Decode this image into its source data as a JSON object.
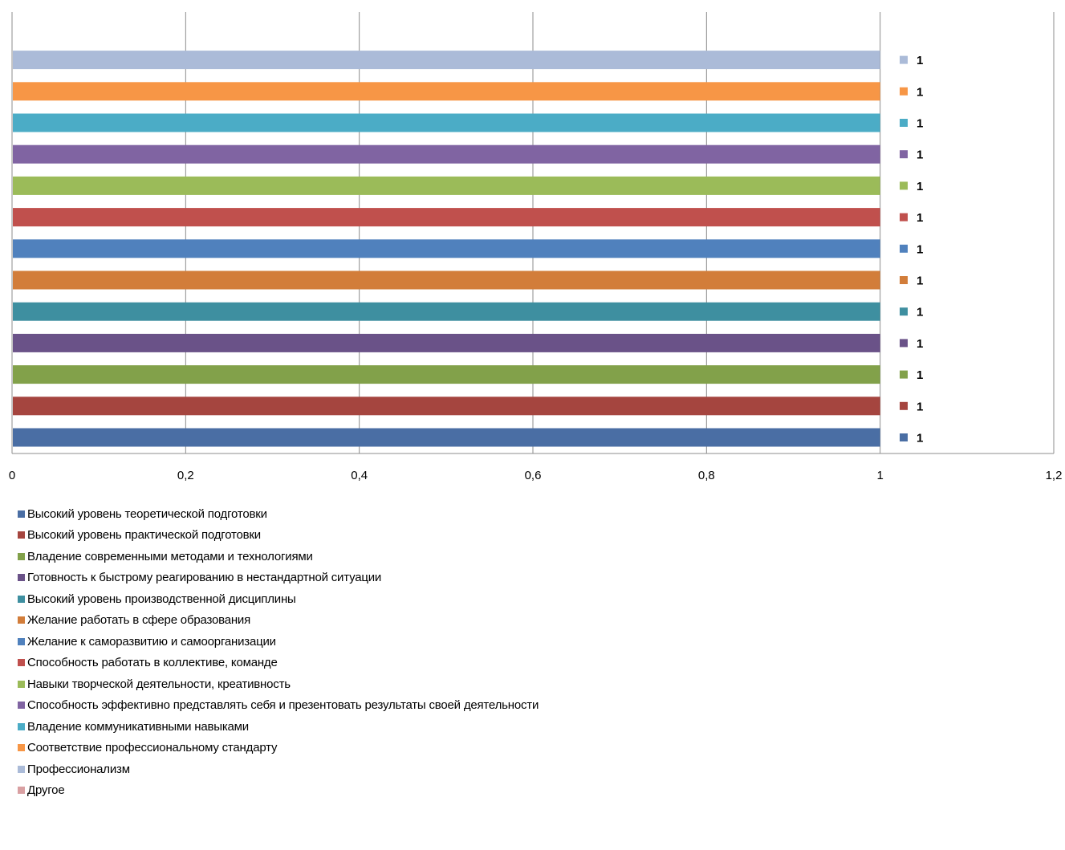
{
  "chart_data": {
    "type": "bar",
    "orientation": "horizontal",
    "xlim": [
      0,
      1.2
    ],
    "x_ticks": [
      "0",
      "0,2",
      "0,4",
      "0,6",
      "0,8",
      "1",
      "1,2"
    ],
    "grid": "vertical",
    "legend_position": "bottom-left",
    "series": [
      {
        "name": "Высокий уровень теоретической подготовки",
        "value": 1,
        "label": "1",
        "color": "#4a6ea4"
      },
      {
        "name": "Высокий уровень практической подготовки",
        "value": 1,
        "label": "1",
        "color": "#a5453f"
      },
      {
        "name": "Владение современными методами и технологиями",
        "value": 1,
        "label": "1",
        "color": "#82a14a"
      },
      {
        "name": "Готовность к быстрому реагированию в нестандартной ситуации",
        "value": 1,
        "label": "1",
        "color": "#6a5288"
      },
      {
        "name": "Высокий уровень производственной дисциплины",
        "value": 1,
        "label": "1",
        "color": "#3e8fa0"
      },
      {
        "name": "Желание работать в сфере образования",
        "value": 1,
        "label": "1",
        "color": "#d27d3a"
      },
      {
        "name": "Желание к саморазвитию и самоорганизации",
        "value": 1,
        "label": "1",
        "color": "#5081bd"
      },
      {
        "name": "Способность работать в коллективе, команде",
        "value": 1,
        "label": "1",
        "color": "#c0504d"
      },
      {
        "name": "Навыки творческой деятельности, креативность",
        "value": 1,
        "label": "1",
        "color": "#9bbb59"
      },
      {
        "name": "Способность эффективно представлять себя и презентовать результаты своей деятельности",
        "value": 1,
        "label": "1",
        "color": "#8064a2"
      },
      {
        "name": "Владение коммуникативными навыками",
        "value": 1,
        "label": "1",
        "color": "#4bacc6"
      },
      {
        "name": "Соответствие профессиональному стандарту",
        "value": 1,
        "label": "1",
        "color": "#f79646"
      },
      {
        "name": "Профессионализм",
        "value": 1,
        "label": "1",
        "color": "#abbbd8"
      },
      {
        "name": "Другое",
        "value": 0,
        "label": "",
        "color": "#d9a0a2"
      }
    ]
  }
}
